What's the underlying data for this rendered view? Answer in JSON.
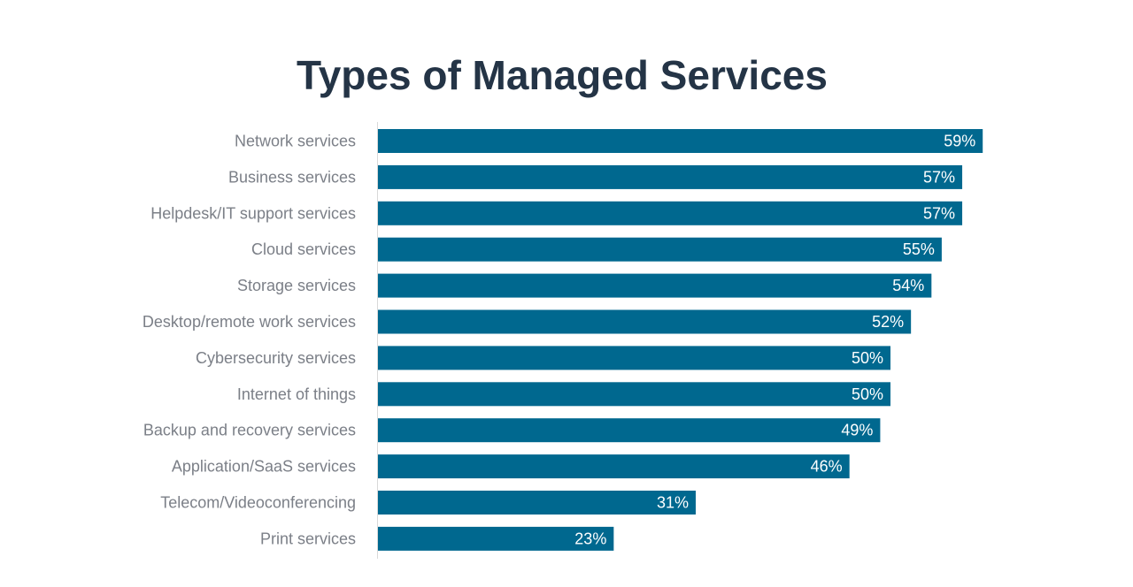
{
  "chart_data": {
    "type": "bar",
    "orientation": "horizontal",
    "title": "Types of Managed Services",
    "categories": [
      "Network services",
      "Business services",
      "Helpdesk/IT support services",
      "Cloud services",
      "Storage services",
      "Desktop/remote work services",
      "Cybersecurity services",
      "Internet of things",
      "Backup and recovery services",
      "Application/SaaS services",
      "Telecom/Videoconferencing",
      "Print services"
    ],
    "values": [
      59,
      57,
      57,
      55,
      54,
      52,
      50,
      50,
      49,
      46,
      31,
      23
    ],
    "value_labels": [
      "59%",
      "57%",
      "57%",
      "55%",
      "54%",
      "52%",
      "50%",
      "50%",
      "49%",
      "46%",
      "31%",
      "23%"
    ],
    "xlim": [
      0,
      70
    ],
    "grid": false,
    "legend": "none",
    "bar_color": "#00688f"
  }
}
